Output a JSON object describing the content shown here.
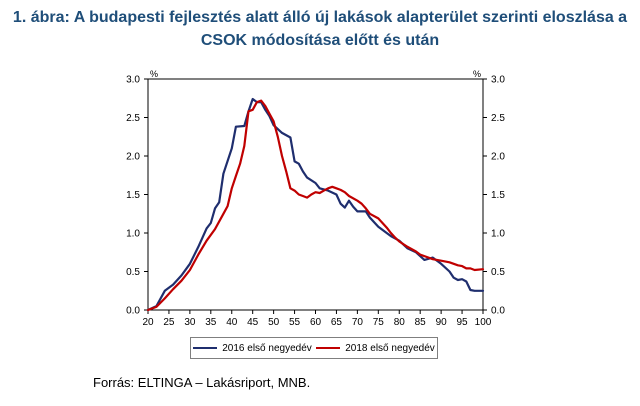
{
  "title_line1": "1. ábra: A budapesti fejlesztés alatt álló új lakások alapterület szerinti eloszlása a",
  "title_line2": "CSOK módosítása előtt és után",
  "source": "Forrás: ELTINGA – Lakásriport, MNB.",
  "chart_data": {
    "type": "line",
    "y_unit_left": "%",
    "y_unit_right": "%",
    "xlim": [
      20,
      100
    ],
    "ylim": [
      0,
      3
    ],
    "x_ticks": [
      20,
      25,
      30,
      35,
      40,
      45,
      50,
      55,
      60,
      65,
      70,
      75,
      80,
      85,
      90,
      95,
      100
    ],
    "y_ticks": [
      "0.0",
      "0.5",
      "1.0",
      "1.5",
      "2.0",
      "2.5",
      "3.0"
    ],
    "grid": false,
    "legend_position": "bottom",
    "series": [
      {
        "name": "2016 első negyedév",
        "color": "#1f2e6e",
        "points": [
          [
            20,
            0.0
          ],
          [
            22,
            0.05
          ],
          [
            24,
            0.25
          ],
          [
            26,
            0.33
          ],
          [
            28,
            0.45
          ],
          [
            30,
            0.6
          ],
          [
            32,
            0.82
          ],
          [
            34,
            1.06
          ],
          [
            35,
            1.13
          ],
          [
            36,
            1.32
          ],
          [
            37,
            1.4
          ],
          [
            38,
            1.77
          ],
          [
            40,
            2.1
          ],
          [
            41,
            2.38
          ],
          [
            43,
            2.39
          ],
          [
            44,
            2.58
          ],
          [
            45,
            2.74
          ],
          [
            46,
            2.7
          ],
          [
            47,
            2.7
          ],
          [
            48,
            2.6
          ],
          [
            49,
            2.52
          ],
          [
            50,
            2.4
          ],
          [
            52,
            2.3
          ],
          [
            54,
            2.24
          ],
          [
            55,
            1.93
          ],
          [
            56,
            1.9
          ],
          [
            57,
            1.8
          ],
          [
            58,
            1.72
          ],
          [
            60,
            1.65
          ],
          [
            61,
            1.58
          ],
          [
            63,
            1.55
          ],
          [
            65,
            1.5
          ],
          [
            66,
            1.38
          ],
          [
            67,
            1.33
          ],
          [
            68,
            1.42
          ],
          [
            69,
            1.34
          ],
          [
            70,
            1.28
          ],
          [
            72,
            1.28
          ],
          [
            73,
            1.2
          ],
          [
            75,
            1.08
          ],
          [
            77,
            1.0
          ],
          [
            78,
            0.96
          ],
          [
            80,
            0.9
          ],
          [
            82,
            0.8
          ],
          [
            84,
            0.75
          ],
          [
            86,
            0.65
          ],
          [
            88,
            0.68
          ],
          [
            90,
            0.6
          ],
          [
            92,
            0.5
          ],
          [
            93,
            0.42
          ],
          [
            94,
            0.39
          ],
          [
            95,
            0.4
          ],
          [
            96,
            0.37
          ],
          [
            97,
            0.26
          ],
          [
            98,
            0.25
          ],
          [
            100,
            0.25
          ]
        ]
      },
      {
        "name": "2018 első negyedév",
        "color": "#c00000",
        "points": [
          [
            20,
            0.0
          ],
          [
            22,
            0.04
          ],
          [
            24,
            0.15
          ],
          [
            26,
            0.27
          ],
          [
            28,
            0.38
          ],
          [
            30,
            0.52
          ],
          [
            32,
            0.72
          ],
          [
            34,
            0.9
          ],
          [
            36,
            1.05
          ],
          [
            38,
            1.25
          ],
          [
            39,
            1.35
          ],
          [
            40,
            1.58
          ],
          [
            41,
            1.74
          ],
          [
            42,
            1.9
          ],
          [
            43,
            2.13
          ],
          [
            44,
            2.58
          ],
          [
            45,
            2.6
          ],
          [
            46,
            2.7
          ],
          [
            47,
            2.72
          ],
          [
            48,
            2.65
          ],
          [
            49,
            2.55
          ],
          [
            50,
            2.45
          ],
          [
            51,
            2.25
          ],
          [
            52,
            2.0
          ],
          [
            53,
            1.8
          ],
          [
            54,
            1.58
          ],
          [
            55,
            1.55
          ],
          [
            56,
            1.5
          ],
          [
            57,
            1.48
          ],
          [
            58,
            1.46
          ],
          [
            59,
            1.5
          ],
          [
            60,
            1.53
          ],
          [
            61,
            1.52
          ],
          [
            62,
            1.55
          ],
          [
            63,
            1.58
          ],
          [
            64,
            1.6
          ],
          [
            65,
            1.58
          ],
          [
            66,
            1.56
          ],
          [
            67,
            1.53
          ],
          [
            68,
            1.48
          ],
          [
            70,
            1.42
          ],
          [
            71,
            1.38
          ],
          [
            72,
            1.32
          ],
          [
            73,
            1.25
          ],
          [
            75,
            1.19
          ],
          [
            76,
            1.13
          ],
          [
            77,
            1.07
          ],
          [
            78,
            1.0
          ],
          [
            79,
            0.94
          ],
          [
            80,
            0.89
          ],
          [
            82,
            0.82
          ],
          [
            84,
            0.76
          ],
          [
            85,
            0.72
          ],
          [
            86,
            0.7
          ],
          [
            88,
            0.66
          ],
          [
            90,
            0.64
          ],
          [
            92,
            0.62
          ],
          [
            93,
            0.6
          ],
          [
            94,
            0.58
          ],
          [
            95,
            0.57
          ],
          [
            96,
            0.54
          ],
          [
            97,
            0.54
          ],
          [
            98,
            0.52
          ],
          [
            100,
            0.53
          ]
        ]
      }
    ]
  }
}
